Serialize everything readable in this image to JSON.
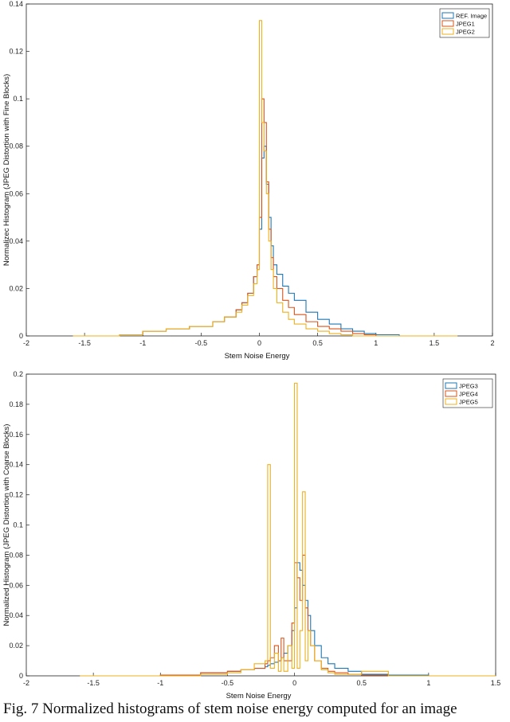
{
  "caption": "Fig. 7 Normalized histograms of stem noise energy computed for an image",
  "colors": {
    "series1": "#1f77b4",
    "series2": "#d9541a",
    "series3": "#edb120",
    "axis": "#222222"
  },
  "chart_data": [
    {
      "type": "line",
      "style": "stairs",
      "title": "",
      "xlabel": "Stem Noise Energy",
      "ylabel": "Normalizec Histogram (JPEG Distortion with Fine Blocks)",
      "xlim": [
        -2,
        2
      ],
      "ylim": [
        0,
        0.14
      ],
      "xticks": [
        -2,
        -1.5,
        -1,
        -0.5,
        0,
        0.5,
        1,
        1.5,
        2
      ],
      "xtick_labels": [
        "-2",
        "-1.5",
        "-1",
        "-0.5",
        "0",
        "0.5",
        "1",
        "1.5",
        "2"
      ],
      "yticks": [
        0,
        0.02,
        0.04,
        0.06,
        0.08,
        0.1,
        0.12,
        0.14
      ],
      "ytick_labels": [
        "0",
        "0.02",
        "0.04",
        "0.06",
        "0.08",
        "0.1",
        "0.12",
        "0.14"
      ],
      "legend_position": "top-right",
      "x": [
        -1.6,
        -1.2,
        -1.0,
        -0.8,
        -0.6,
        -0.4,
        -0.3,
        -0.2,
        -0.15,
        -0.1,
        -0.05,
        -0.02,
        0.0,
        0.02,
        0.04,
        0.06,
        0.08,
        0.1,
        0.12,
        0.15,
        0.2,
        0.25,
        0.3,
        0.4,
        0.5,
        0.6,
        0.7,
        0.8,
        0.9,
        1.0,
        1.2,
        1.6
      ],
      "series": [
        {
          "name": "REF. Image",
          "color": "#1f77b4",
          "values": [
            0,
            0.0005,
            0.002,
            0.003,
            0.004,
            0.006,
            0.008,
            0.011,
            0.014,
            0.018,
            0.025,
            0.028,
            0.045,
            0.075,
            0.08,
            0.064,
            0.05,
            0.038,
            0.03,
            0.026,
            0.021,
            0.018,
            0.015,
            0.01,
            0.007,
            0.005,
            0.003,
            0.002,
            0.001,
            0.0005,
            0,
            0
          ]
        },
        {
          "name": "JPEG1",
          "color": "#d9541a",
          "values": [
            0,
            0.0005,
            0.002,
            0.003,
            0.004,
            0.006,
            0.008,
            0.011,
            0.014,
            0.018,
            0.025,
            0.03,
            0.05,
            0.1,
            0.09,
            0.065,
            0.045,
            0.033,
            0.025,
            0.02,
            0.015,
            0.012,
            0.009,
            0.006,
            0.004,
            0.003,
            0.002,
            0.001,
            0.0005,
            0,
            0,
            0
          ]
        },
        {
          "name": "JPEG2",
          "color": "#edb120",
          "values": [
            0,
            0.0005,
            0.002,
            0.003,
            0.004,
            0.006,
            0.008,
            0.01,
            0.013,
            0.017,
            0.022,
            0.028,
            0.133,
            0.09,
            0.078,
            0.06,
            0.04,
            0.028,
            0.02,
            0.014,
            0.01,
            0.007,
            0.005,
            0.003,
            0.002,
            0.001,
            0.0005,
            0,
            0,
            0,
            0,
            0
          ]
        }
      ]
    },
    {
      "type": "line",
      "style": "stairs",
      "title": "",
      "xlabel": "Stem Noise Energy",
      "ylabel": "Normalized Histogram (JPEG Distortion with Coarse Blocks)",
      "xlim": [
        -2,
        1.5
      ],
      "ylim": [
        0,
        0.2
      ],
      "xticks": [
        -2,
        -1.5,
        -1,
        -0.5,
        0,
        0.5,
        1,
        1.5
      ],
      "xtick_labels": [
        "-2",
        "-1.5",
        "-1",
        "-0.5",
        "0",
        "0.5",
        "1",
        "1.5"
      ],
      "yticks": [
        0,
        0.02,
        0.04,
        0.06,
        0.08,
        0.1,
        0.12,
        0.14,
        0.16,
        0.18,
        0.2
      ],
      "ytick_labels": [
        "0",
        "0.02",
        "0.04",
        "0.06",
        "0.08",
        "0.1",
        "0.12",
        "0.14",
        "0.16",
        "0.18",
        "0.2"
      ],
      "legend_position": "top-right",
      "x": [
        -1.6,
        -1.0,
        -0.7,
        -0.5,
        -0.4,
        -0.3,
        -0.22,
        -0.2,
        -0.18,
        -0.15,
        -0.12,
        -0.1,
        -0.08,
        -0.05,
        -0.02,
        0.0,
        0.02,
        0.04,
        0.06,
        0.08,
        0.1,
        0.12,
        0.15,
        0.2,
        0.25,
        0.3,
        0.4,
        0.5,
        0.7,
        1.0,
        1.4
      ],
      "series": [
        {
          "name": "JPEG3",
          "color": "#1f77b4",
          "values": [
            0,
            0.0005,
            0.002,
            0.003,
            0.004,
            0.005,
            0.006,
            0.007,
            0.008,
            0.009,
            0.01,
            0.012,
            0.015,
            0.02,
            0.03,
            0.045,
            0.075,
            0.07,
            0.06,
            0.05,
            0.04,
            0.03,
            0.02,
            0.012,
            0.008,
            0.005,
            0.003,
            0.001,
            0.0005,
            0,
            0
          ]
        },
        {
          "name": "JPEG4",
          "color": "#d9541a",
          "values": [
            0,
            0.0005,
            0.002,
            0.003,
            0.004,
            0.005,
            0.008,
            0.01,
            0.012,
            0.02,
            0.01,
            0.025,
            0.01,
            0.01,
            0.035,
            0.075,
            0.065,
            0.05,
            0.08,
            0.045,
            0.03,
            0.02,
            0.01,
            0.005,
            0.003,
            0.002,
            0.001,
            0.0005,
            0,
            0,
            0
          ]
        },
        {
          "name": "JPEG5",
          "color": "#edb120",
          "values": [
            0,
            0,
            0.001,
            0.002,
            0.004,
            0.008,
            0.01,
            0.14,
            0.005,
            0.015,
            0.003,
            0.012,
            0.003,
            0.02,
            0.005,
            0.194,
            0.005,
            0.03,
            0.122,
            0.01,
            0.03,
            0.02,
            0.01,
            0.004,
            0.002,
            0.001,
            0.001,
            0.003,
            0,
            0,
            0
          ]
        }
      ]
    }
  ]
}
